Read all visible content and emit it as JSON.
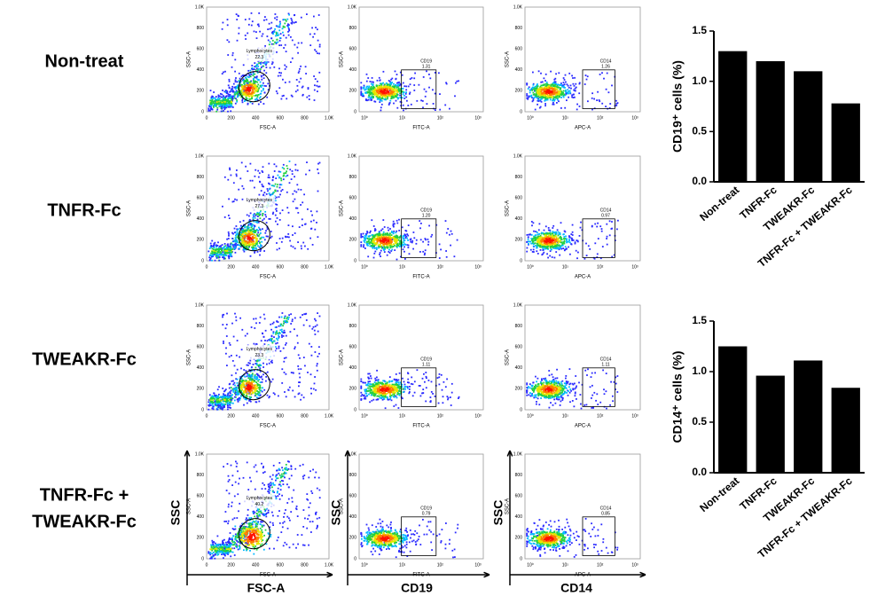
{
  "rows": [
    {
      "label": [
        "Non-treat"
      ],
      "lymphocytes": "22.3",
      "cd19": "1.31",
      "cd14": "1.26"
    },
    {
      "label": [
        "TNFR-Fc"
      ],
      "lymphocytes": "27.3",
      "cd19": "1.20",
      "cd14": "0.97"
    },
    {
      "label": [
        "TWEAKR-Fc"
      ],
      "lymphocytes": "23.3",
      "cd19": "1.11",
      "cd14": "1.11"
    },
    {
      "label": [
        "TNFR-Fc  +",
        "TWEAKR-Fc"
      ],
      "lymphocytes": "40.2",
      "cd19": "0.79",
      "cd14": "0.85"
    }
  ],
  "flow": {
    "lin_ticks": [
      "0",
      "200",
      "400",
      "600",
      "800",
      "1.0K"
    ],
    "log_ticks": [
      "10⁰",
      "10¹",
      "10²",
      "10³"
    ],
    "gate_lymph": "Lymphocytes",
    "gate_cd19": "CD19",
    "gate_cd14": "CD14",
    "fsc": "FSC-A",
    "ssc": "SSC-A",
    "fitc": "FITC-A",
    "apc": "APC-A",
    "big_ssc": "SSC",
    "big_fsc": "FSC-A",
    "big_cd19": "CD19",
    "big_cd14": "CD14"
  },
  "chart_data": [
    {
      "type": "bar",
      "ylabel": "CD19⁺ cells (%)",
      "categories": [
        "Non-treat",
        "TNFR-Fc",
        "TWEAKR-Fc",
        "TNFR-Fc + TWEAKR-Fc"
      ],
      "values": [
        1.3,
        1.2,
        1.1,
        0.78
      ],
      "color": "#000000",
      "ylim": [
        0,
        1.5
      ],
      "yticks": [
        {
          "value": 0,
          "label": "0.0"
        },
        0.5,
        {
          "value": 1,
          "label": "1.0"
        },
        1.5
      ]
    },
    {
      "type": "bar",
      "ylabel": "CD14⁺ cells (%)",
      "categories": [
        "Non-treat",
        "TNFR-Fc",
        "TWEAKR-Fc",
        "TNFR-Fc + TWEAKR-Fc"
      ],
      "values": [
        1.25,
        0.96,
        1.11,
        0.84
      ],
      "color": "#000000",
      "ylim": [
        0,
        1.5
      ],
      "yticks": [
        {
          "value": 0,
          "label": "0.0"
        },
        0.5,
        {
          "value": 1,
          "label": "1.0"
        },
        1.5
      ]
    }
  ]
}
